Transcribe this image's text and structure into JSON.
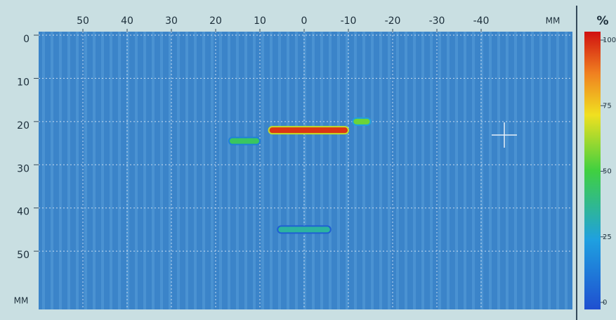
{
  "chart_data": {
    "type": "heatmap",
    "x_unit": "MM",
    "y_unit": "MM",
    "colorbar_title": "%",
    "xlim": [
      60,
      -60
    ],
    "xticks": [
      50,
      40,
      30,
      20,
      10,
      0,
      -10,
      -20,
      -30,
      -40
    ],
    "ylim": [
      0,
      63
    ],
    "yticks": [
      0,
      10,
      20,
      30,
      40,
      50
    ],
    "clim": [
      0,
      100
    ],
    "cticks": [
      0,
      25,
      50,
      75,
      100
    ],
    "grid": true,
    "indications": [
      {
        "x": [
          8,
          -10
        ],
        "y": 22,
        "value": 95
      },
      {
        "x": [
          17,
          10
        ],
        "y": 24.5,
        "value": 45
      },
      {
        "x": [
          -11,
          -15
        ],
        "y": 20,
        "value": 55
      },
      {
        "x": [
          6,
          -6
        ],
        "y": 45,
        "value": 35
      }
    ]
  }
}
